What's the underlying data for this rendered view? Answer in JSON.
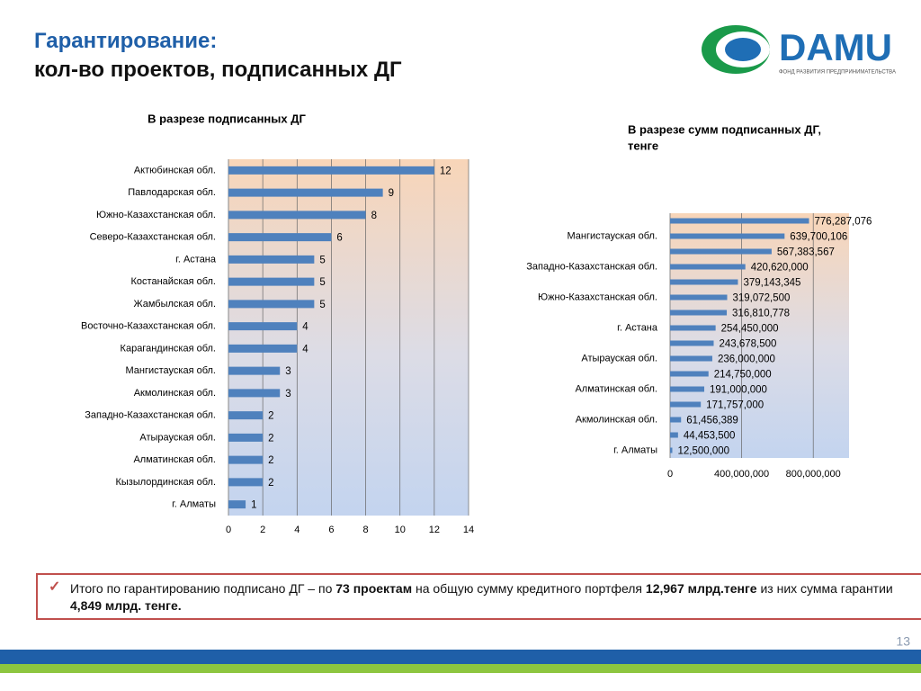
{
  "header": {
    "title": [
      "Гарантирование:",
      "кол-во проектов, подписанных ДГ"
    ]
  },
  "logo": {
    "name": "DAMU",
    "subtitle": "ФОНД РАЗВИТИЯ ПРЕДПРИНИМАТЕЛЬСТВА"
  },
  "chart_data": [
    {
      "type": "barh",
      "title": [
        "В разрезе подписанных ДГ"
      ],
      "categories": [
        "Актюбинская обл.",
        "Павлодарская обл.",
        "Южно-Казахстанская обл.",
        "Северо-Казахстанская обл.",
        "г. Астана",
        "Костанайская обл.",
        "Жамбылская обл.",
        "Восточно-Казахстанская обл.",
        "Карагандинская обл.",
        "Мангистауская обл.",
        "Акмолинская обл.",
        "Западно-Казахстанская обл.",
        "Атырауская обл.",
        "Алматинская обл.",
        "Кызылординская обл.",
        "г. Алматы"
      ],
      "values": [
        12,
        9,
        8,
        6,
        5,
        5,
        5,
        4,
        4,
        3,
        3,
        2,
        2,
        2,
        2,
        1
      ],
      "color": "#4f81bd",
      "xlim": [
        0,
        14
      ],
      "xticks": [
        0,
        2,
        4,
        6,
        8,
        10,
        12,
        14
      ],
      "grid": true
    },
    {
      "type": "barh",
      "title": [
        "В разрезе сумм подписанных ДГ,",
        "тенге"
      ],
      "categories": [
        null,
        "Мангистауская обл.",
        null,
        "Западно-Казахстанская обл.",
        null,
        "Южно-Казахстанская обл.",
        null,
        "г. Астана",
        null,
        "Атырауская обл.",
        null,
        "Алматинская обл.",
        null,
        "Акмолинская обл.",
        null,
        "г. Алматы"
      ],
      "values": [
        776287076,
        639700106,
        567383567,
        420620000,
        379143345,
        319072500,
        316810778,
        254450000,
        243678500,
        236000000,
        214750000,
        191000000,
        171757000,
        61456389,
        44453500,
        12500000
      ],
      "value_labels": [
        "776,287,076",
        "639,700,106",
        "567,383,567",
        "420,620,000",
        "379,143,345",
        "319,072,500",
        "316,810,778",
        "254,450,000",
        "243,678,500",
        "236,000,000",
        "214,750,000",
        "191,000,000",
        "171,757,000",
        "61,456,389",
        "44,453,500",
        "12,500,000"
      ],
      "color": "#4f81bd",
      "xlim": [
        0,
        1000000000
      ],
      "xticks": [
        0,
        {
          "value": 400000000,
          "label": "400,000,000"
        },
        {
          "value": 800000000,
          "label": "800,000,000"
        }
      ],
      "grid": true
    }
  ],
  "summary": {
    "parts": [
      "Итого по гарантированию подписано ДГ – по ",
      "73 проектам",
      " на общую сумму кредитного портфеля  ",
      "12,967 млрд.тенге",
      "  из них сумма гарантии ",
      "4,849 млрд. тенге."
    ]
  },
  "page_number": "13"
}
